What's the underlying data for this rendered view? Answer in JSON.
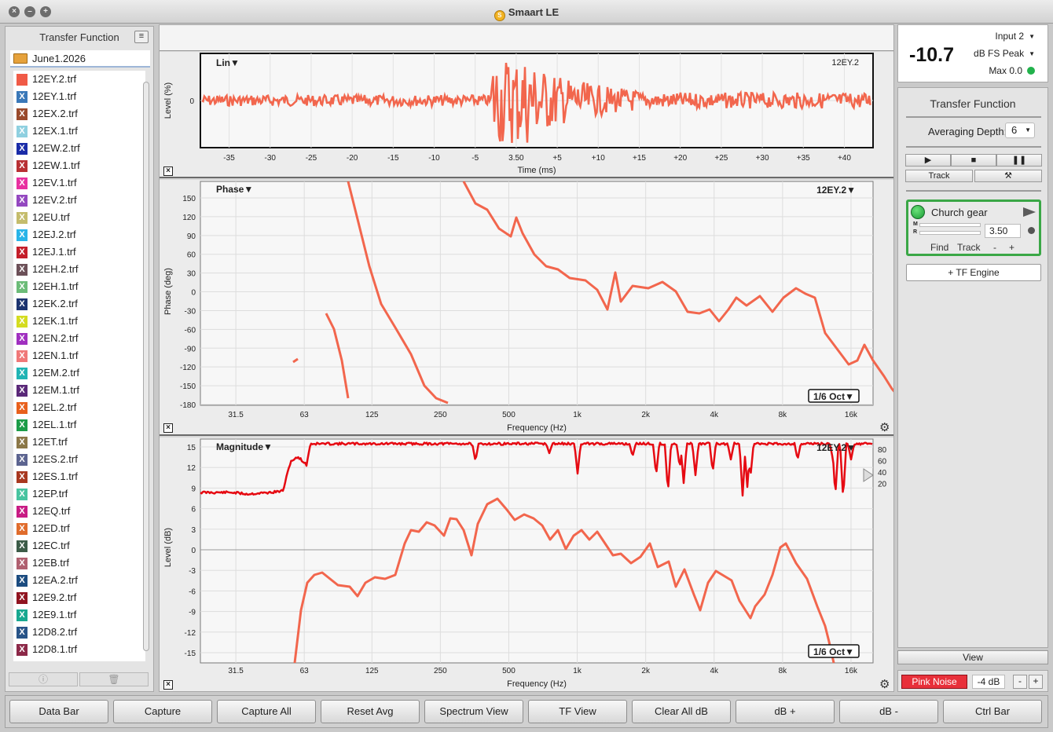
{
  "window": {
    "title": "Smaart LE"
  },
  "sidebar": {
    "title": "Transfer Function",
    "folder": "June1.2026",
    "files": [
      {
        "name": "12EY.2.trf",
        "color": "#f05a46"
      },
      {
        "name": "12EY.1.trf",
        "color": "#3a78b8"
      },
      {
        "name": "12EX.2.trf",
        "color": "#9a4a2c"
      },
      {
        "name": "12EX.1.trf",
        "color": "#8fd0e0"
      },
      {
        "name": "12EW.2.trf",
        "color": "#1a2ca8"
      },
      {
        "name": "12EW.1.trf",
        "color": "#b83034"
      },
      {
        "name": "12EV.1.trf",
        "color": "#e830a0"
      },
      {
        "name": "12EV.2.trf",
        "color": "#9448c0"
      },
      {
        "name": "12EU.trf",
        "color": "#c4bc6c"
      },
      {
        "name": "12EJ.2.trf",
        "color": "#28b4e8"
      },
      {
        "name": "12EJ.1.trf",
        "color": "#c41e2a"
      },
      {
        "name": "12EH.2.trf",
        "color": "#6c5058"
      },
      {
        "name": "12EH.1.trf",
        "color": "#6cbc78"
      },
      {
        "name": "12EK.2.trf",
        "color": "#1c3470"
      },
      {
        "name": "12EK.1.trf",
        "color": "#d4dc20"
      },
      {
        "name": "12EN.2.trf",
        "color": "#a030c0"
      },
      {
        "name": "12EN.1.trf",
        "color": "#f07878"
      },
      {
        "name": "12EM.2.trf",
        "color": "#20b4b4"
      },
      {
        "name": "12EM.1.trf",
        "color": "#5a2878"
      },
      {
        "name": "12EL.2.trf",
        "color": "#e8601c"
      },
      {
        "name": "12EL.1.trf",
        "color": "#1c9c48"
      },
      {
        "name": "12ET.trf",
        "color": "#8c7848"
      },
      {
        "name": "12ES.2.trf",
        "color": "#5c6490"
      },
      {
        "name": "12ES.1.trf",
        "color": "#a83820"
      },
      {
        "name": "12EP.trf",
        "color": "#48c4a0"
      },
      {
        "name": "12EQ.trf",
        "color": "#c81c84"
      },
      {
        "name": "12ED.trf",
        "color": "#e06c2c"
      },
      {
        "name": "12EC.trf",
        "color": "#3c5c48"
      },
      {
        "name": "12EB.trf",
        "color": "#b06070"
      },
      {
        "name": "12EA.2.trf",
        "color": "#1c4c80"
      },
      {
        "name": "12E9.2.trf",
        "color": "#901420"
      },
      {
        "name": "12E9.1.trf",
        "color": "#18a890"
      },
      {
        "name": "12D8.2.trf",
        "color": "#285488"
      },
      {
        "name": "12D8.1.trf",
        "color": "#8c2848"
      }
    ],
    "bottom_icons": [
      "info-icon",
      "trash-icon"
    ]
  },
  "ir_panel": {
    "title": "Lin",
    "measurement": "12EY.2",
    "ylabel": "Level (%)",
    "xlabel": "Time (ms)",
    "y_tick": "0",
    "x_ticks": [
      "-35",
      "-30",
      "-25",
      "-20",
      "-15",
      "-10",
      "-5",
      "3.50",
      "+5",
      "+10",
      "+15",
      "+20",
      "+25",
      "+30",
      "+35",
      "+40"
    ]
  },
  "phase_panel": {
    "title": "Phase",
    "measurement": "12EY.2",
    "ylabel": "Phase (deg)",
    "xlabel": "Frequency (Hz)",
    "smoothing": "1/6 Oct",
    "y_ticks": [
      "150",
      "120",
      "90",
      "60",
      "30",
      "0",
      "-30",
      "-60",
      "-90",
      "-120",
      "-150",
      "-180"
    ],
    "x_ticks": [
      "31.5",
      "63",
      "125",
      "250",
      "500",
      "1k",
      "2k",
      "4k",
      "8k",
      "16k"
    ]
  },
  "magnitude_panel": {
    "title": "Magnitude",
    "measurement": "12EY.2",
    "ylabel": "Level (dB)",
    "xlabel": "Frequency (Hz)",
    "smoothing": "1/6 Oct",
    "y_ticks": [
      "15",
      "12",
      "9",
      "6",
      "3",
      "0",
      "-3",
      "-6",
      "-9",
      "-12",
      "-15"
    ],
    "x_ticks": [
      "31.5",
      "63",
      "125",
      "250",
      "500",
      "1k",
      "2k",
      "4k",
      "8k",
      "16k"
    ],
    "coherence_ticks": [
      "80",
      "60",
      "40",
      "20"
    ]
  },
  "colors": {
    "trace": "#f2664d",
    "coherence": "#e60a12",
    "accent_green": "#3aa746",
    "pink_noise": "#e8303a"
  },
  "meter": {
    "input": "Input 2",
    "value": "-10.7",
    "unit": "dB FS Peak",
    "max": "Max 0.0"
  },
  "controls": {
    "title": "Transfer Function",
    "averaging_label": "Averaging Depth:",
    "averaging_value": "6",
    "track_label": "Track",
    "engine": {
      "name": "Church gear",
      "m_label": "M",
      "r_label": "R",
      "delay": "3.50",
      "find": "Find",
      "track": "Track",
      "minus": "-",
      "plus": "+"
    },
    "add_engine": "+ TF Engine",
    "view": "View",
    "pink_noise": "Pink Noise",
    "noise_level": "-4 dB",
    "noise_minus": "-",
    "noise_plus": "+"
  },
  "bottom_bar": [
    "Data Bar",
    "Capture",
    "Capture All",
    "Reset Avg",
    "Spectrum View",
    "TF View",
    "Clear All dB",
    "dB +",
    "dB -",
    "Ctrl Bar"
  ]
}
